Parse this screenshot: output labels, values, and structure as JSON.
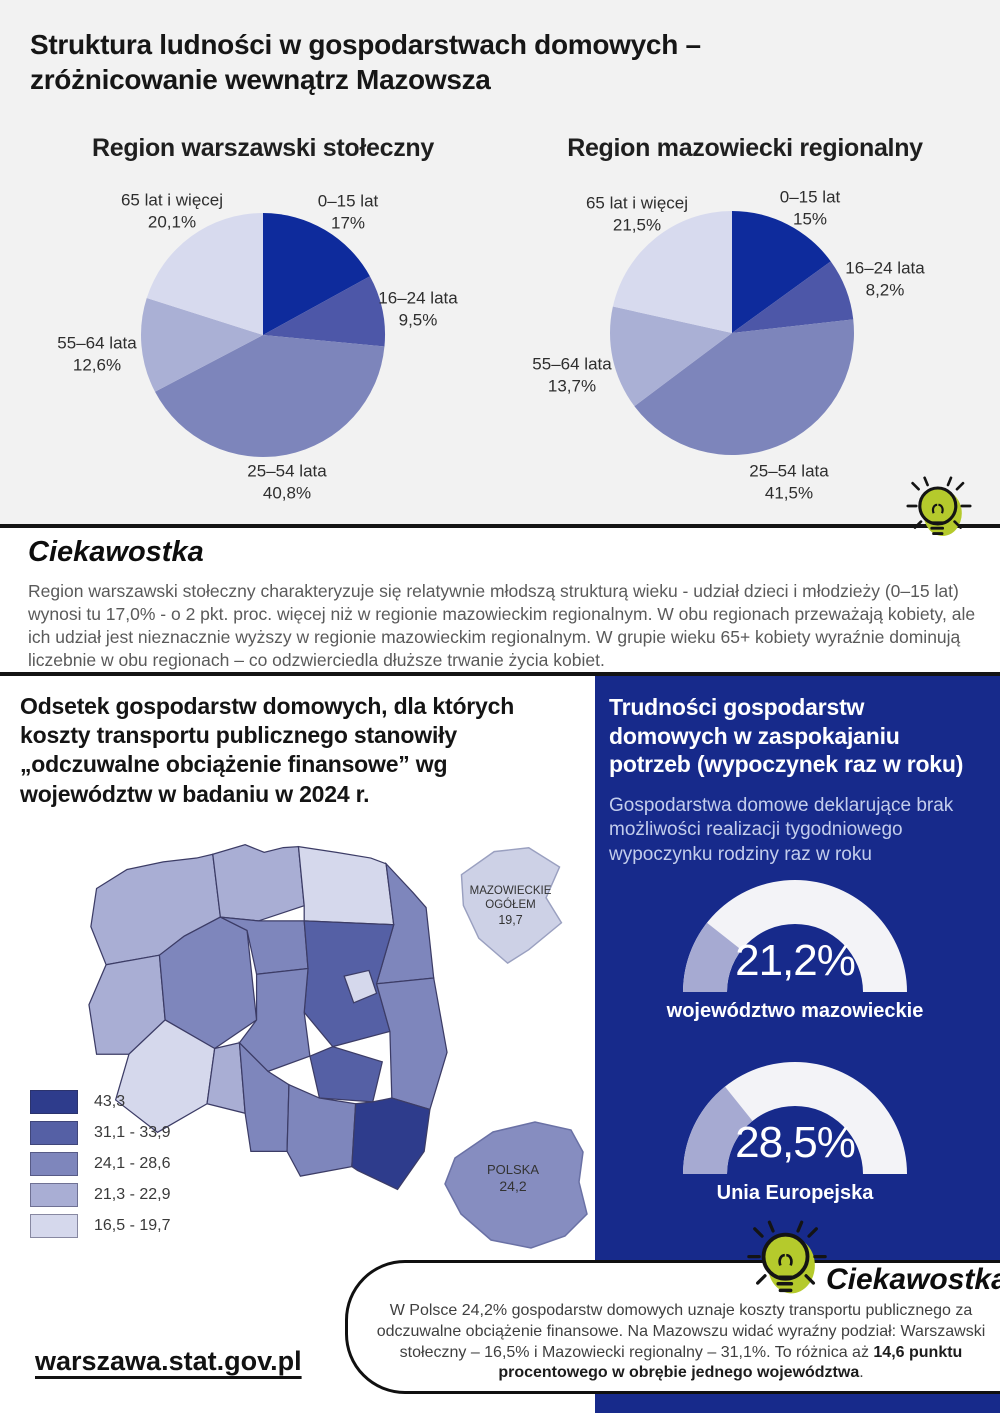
{
  "page": {
    "title": "Struktura ludności w gospodarstwach domowych – zróżnicowanie wewnątrz Mazowsza"
  },
  "colors": {
    "top_background": "#f2f2f2",
    "panel_navy": "#172a8b",
    "rule_black": "#141414",
    "bulb_green": "#b5ca2c",
    "gauge_fill": "#a6aad2",
    "gauge_track": "#f3f3f7"
  },
  "fact1": {
    "heading": "Ciekawostka",
    "text": "Region warszawski stołeczny charakteryzuje się relatywnie młodszą strukturą wieku - udział dzieci i młodzieży (0–15 lat) wynosi tu 17,0% - o 2 pkt. proc. więcej niż w regionie mazowieckim regionalnym. W obu regionach przeważają kobiety, ale ich udział jest nieznacznie wyższy w regionie mazowieckim regionalnym. W grupie wieku 65+ kobiety wyraźnie dominują liczebnie w obu regionach – co odzwierciedla dłuższe trwanie życia kobiet."
  },
  "panel": {
    "heading": "Trudności gospodarstw domowych w zaspokajaniu potrzeb (wypoczynek raz w roku)",
    "subheading": "Gospodarstwa domowe deklarujące brak możliwości realizacji tygodniowego wypoczynku rodziny raz w roku"
  },
  "fact2": {
    "heading": "Ciekawostka",
    "text_before": "W Polsce 24,2% gospodarstw domowych uznaje koszty transportu publicznego za odczuwalne obciążenie finansowe. Na Mazowszu widać wyraźny podział:  Warszawski stołeczny – 16,5% i Mazowiecki regionalny – 31,1%. To różnica aż ",
    "text_bold": "14,6 punktu procentowego w obrębie jednego województwa",
    "text_after": "."
  },
  "footer": {
    "link": "warszawa.stat.gov.pl"
  },
  "chart_data": [
    {
      "type": "pie",
      "title": "Region warszawski stołeczny",
      "start_angle_deg": -90,
      "colors": [
        "#0e2b9c",
        "#4d57a8",
        "#7d85bb",
        "#aab0d5",
        "#d7daee"
      ],
      "slices": [
        {
          "label": "0–15 lat",
          "value": 17.0,
          "value_label": "17%"
        },
        {
          "label": "16–24 lata",
          "value": 9.5,
          "value_label": "9,5%"
        },
        {
          "label": "25–54 lata",
          "value": 40.8,
          "value_label": "40,8%"
        },
        {
          "label": "55–64 lata",
          "value": 12.6,
          "value_label": "12,6%"
        },
        {
          "label": "65 lat i więcej",
          "value": 20.1,
          "value_label": "20,1%"
        }
      ]
    },
    {
      "type": "pie",
      "title": "Region mazowiecki regionalny",
      "start_angle_deg": -90,
      "colors": [
        "#0e2b9c",
        "#4d57a8",
        "#7d85bb",
        "#aab0d5",
        "#d7daee"
      ],
      "slices": [
        {
          "label": "0–15 lat",
          "value": 15.0,
          "value_label": "15%"
        },
        {
          "label": "16–24 lata",
          "value": 8.2,
          "value_label": "8,2%"
        },
        {
          "label": "25–54 lata",
          "value": 41.5,
          "value_label": "41,5%"
        },
        {
          "label": "55–64 lata",
          "value": 13.7,
          "value_label": "13,7%"
        },
        {
          "label": "65 lat i więcej",
          "value": 21.5,
          "value_label": "21,5%"
        }
      ]
    },
    {
      "type": "choropleth",
      "title": "Odsetek gospodarstw domowych, dla których koszty transportu publicznego stanowiły „odczuwalne obciążenie finansowe” wg województw w badaniu w 2024 r.",
      "legend": [
        {
          "label": "43,3",
          "color": "#2e3c8c"
        },
        {
          "label": "31,1 - 33,9",
          "color": "#5560a5"
        },
        {
          "label": "24,1 - 28,6",
          "color": "#7e86bc"
        },
        {
          "label": "21,3 - 22,9",
          "color": "#a9aed4"
        },
        {
          "label": "16,5 - 19,7",
          "color": "#d5d8ec"
        }
      ],
      "region_categories": {
        "zachodniopomorskie": 3,
        "pomorskie": 3,
        "warminsko-mazurskie": 4,
        "podlaskie": 2,
        "lubuskie": 3,
        "wielkopolskie": 2,
        "kujawsko-pomorskie": 2,
        "mazowieckie": 1,
        "warszawa": 4,
        "lodzkie": 2,
        "lubelskie": 2,
        "swietokrzyskie": 1,
        "dolnoslaskie": 4,
        "opolskie": 3,
        "slaskie": 2,
        "malopolskie": 2,
        "podkarpackie": 0
      },
      "insets": [
        {
          "label": "MAZOWIECKIE OGÓŁEM",
          "value": "19,7",
          "color": "#cdd1e6"
        },
        {
          "label": "POLSKA",
          "value": "24,2",
          "color": "#868dc0"
        }
      ]
    },
    {
      "type": "gauge",
      "value": 21.2,
      "min": 0,
      "max": 100,
      "value_label": "21,2%",
      "label": "województwo mazowieckie",
      "fill_color": "#a6aad2",
      "track_color": "#f3f3f7"
    },
    {
      "type": "gauge",
      "value": 28.5,
      "min": 0,
      "max": 100,
      "value_label": "28,5%",
      "label": "Unia Europejska",
      "fill_color": "#a6aad2",
      "track_color": "#f3f3f7"
    }
  ]
}
